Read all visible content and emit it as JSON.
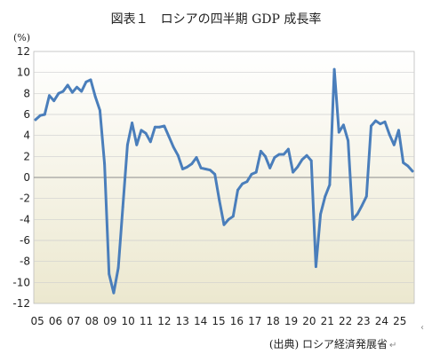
{
  "header": {
    "title": "図表１　ロシアの四半期 GDP 成長率",
    "return_mark": "↵"
  },
  "footer": {
    "source": "(出典) ロシア経済発展省",
    "return_mark": "↵"
  },
  "side_mark": "‹",
  "chart_data": {
    "type": "line",
    "title": "図表１　ロシアの四半期 GDP 成長率",
    "ylabel": "(%)",
    "xlabel": "",
    "ylim": [
      -12,
      12
    ],
    "yticks": [
      12,
      10,
      8,
      6,
      4,
      2,
      0,
      -2,
      -4,
      -6,
      -8,
      -10,
      -12
    ],
    "grid": true,
    "legend": "none",
    "colors": {
      "series": "#4a7ebb",
      "plot_bg_top": "#ffffff",
      "plot_bg_bottom": "#ece8cf"
    },
    "xticks": [
      "05",
      "06",
      "07",
      "08",
      "09",
      "10",
      "11",
      "12",
      "13",
      "14",
      "15",
      "16",
      "17",
      "18",
      "19",
      "20",
      "21",
      "22",
      "23",
      "24",
      "25"
    ],
    "x_start": "2005Q1",
    "frequency": "quarterly",
    "series": [
      {
        "values": [
          5.5,
          5.9,
          6.0,
          7.8,
          7.3,
          8.0,
          8.2,
          8.8,
          8.1,
          8.6,
          8.2,
          9.1,
          9.3,
          7.7,
          6.4,
          1.3,
          -9.2,
          -11.0,
          -8.6,
          -2.8,
          3.1,
          5.2,
          3.1,
          4.5,
          4.2,
          3.4,
          4.8,
          4.8,
          4.9,
          3.9,
          2.9,
          2.1,
          0.8,
          1.0,
          1.3,
          1.9,
          0.9,
          0.8,
          0.7,
          0.3,
          -2.2,
          -4.5,
          -4.0,
          -3.7,
          -1.2,
          -0.6,
          -0.4,
          0.3,
          0.5,
          2.5,
          2.0,
          0.9,
          1.9,
          2.2,
          2.2,
          2.7,
          0.5,
          1.0,
          1.7,
          2.1,
          1.6,
          -8.5,
          -3.5,
          -1.8,
          -0.7,
          10.3,
          4.3,
          5.0,
          3.5,
          -4.0,
          -3.5,
          -2.7,
          -1.8,
          4.9,
          5.4,
          5.1,
          5.3,
          4.1,
          3.1,
          4.5,
          1.4,
          1.1,
          0.6
        ]
      }
    ]
  }
}
